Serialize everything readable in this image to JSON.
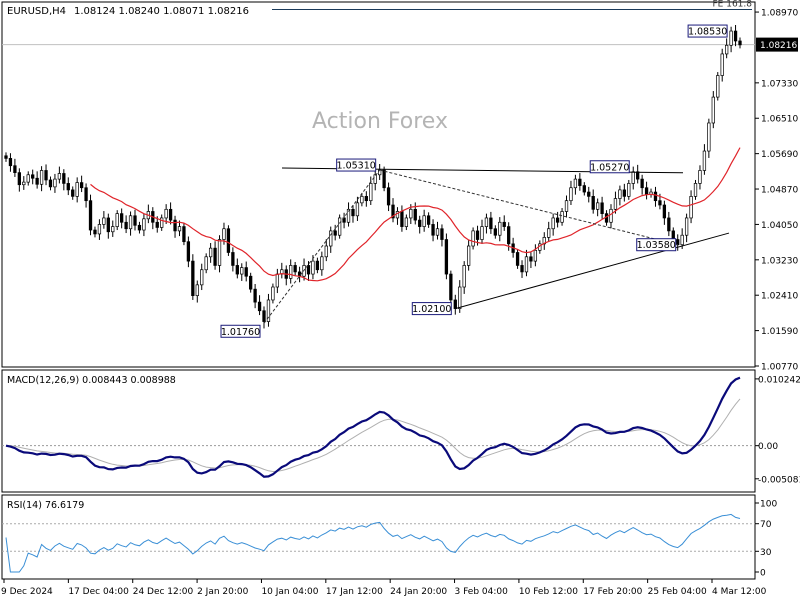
{
  "header": {
    "symbol": "EURUSD,H4",
    "ohlc": "1.08124 1.08240 1.08071 1.08216"
  },
  "watermark": "Action Forex",
  "colors": {
    "candles": "#000000",
    "ma": "#e0242a",
    "macd": "#0a0a7a",
    "macd_signal": "#b0b0b0",
    "rsi": "#3a8fd6",
    "trendline": "#000000",
    "fib_line": "#1a3a5a",
    "background": "#ffffff"
  },
  "chart_data": {
    "type": "candlestick",
    "price_axis": {
      "ticks": [
        "1.08970",
        "1.07330",
        "1.06510",
        "1.05690",
        "1.04870",
        "1.04050",
        "1.03230",
        "1.02410",
        "1.01590",
        "1.00770"
      ],
      "ylim": [
        1.0077,
        1.0918
      ],
      "current_price": "1.08216"
    },
    "time_axis": {
      "ticks": [
        "9 Dec 2024",
        "17 Dec 04:00",
        "24 Dec 12:00",
        "2 Jan 20:00",
        "10 Jan 04:00",
        "17 Jan 12:00",
        "24 Jan 20:00",
        "3 Feb 04:00",
        "10 Feb 12:00",
        "17 Feb 20:00",
        "25 Feb 04:00",
        "4 Mar 12:00"
      ]
    },
    "price_series": [
      1.0558,
      1.0541,
      1.0525,
      1.0497,
      1.0503,
      1.052,
      1.0512,
      1.0498,
      1.053,
      1.0508,
      1.0492,
      1.051,
      1.0523,
      1.05,
      1.0485,
      1.047,
      1.0502,
      1.049,
      1.046,
      1.0392,
      1.0383,
      1.0405,
      1.042,
      1.0388,
      1.04,
      1.043,
      1.041,
      1.0395,
      1.0425,
      1.0403,
      1.0392,
      1.0418,
      1.0435,
      1.041,
      1.0398,
      1.042,
      1.044,
      1.0415,
      1.039,
      1.04,
      1.0365,
      1.032,
      1.024,
      1.0265,
      1.03,
      1.033,
      1.035,
      1.031,
      1.037,
      1.0395,
      1.034,
      1.031,
      1.029,
      1.0305,
      1.0285,
      1.0255,
      1.0225,
      1.0205,
      1.018,
      1.023,
      1.026,
      1.029,
      1.03,
      1.028,
      1.031,
      1.0295,
      1.0285,
      1.031,
      1.029,
      1.032,
      1.03,
      1.033,
      1.0355,
      1.039,
      1.038,
      1.042,
      1.041,
      1.044,
      1.0425,
      1.0455,
      1.047,
      1.046,
      1.05,
      1.052,
      1.0531,
      1.049,
      1.045,
      1.042,
      1.0435,
      1.04,
      1.042,
      1.044,
      1.0415,
      1.04,
      1.0425,
      1.0405,
      1.038,
      1.0395,
      1.037,
      1.029,
      1.023,
      1.021,
      1.026,
      1.031,
      1.0355,
      1.039,
      1.037,
      1.04,
      1.042,
      1.0395,
      1.038,
      1.041,
      1.04,
      1.036,
      1.034,
      1.031,
      1.0295,
      1.033,
      1.032,
      1.0345,
      1.036,
      1.0375,
      1.0395,
      1.042,
      1.041,
      1.0435,
      1.046,
      1.049,
      1.051,
      1.0495,
      1.048,
      1.047,
      1.044,
      1.0455,
      1.043,
      1.041,
      1.044,
      1.0465,
      1.0485,
      1.047,
      1.05,
      1.0527,
      1.051,
      1.049,
      1.0475,
      1.048,
      1.046,
      1.045,
      1.042,
      1.039,
      1.037,
      1.0358,
      1.038,
      1.042,
      1.047,
      1.05,
      1.053,
      1.0575,
      1.064,
      1.07,
      1.075,
      1.08,
      1.082,
      1.0853,
      1.083,
      1.0821
    ],
    "moving_average_from_index": 19,
    "annotations": [
      {
        "label": "1.08530",
        "price": 1.0853
      },
      {
        "label": "1.05310",
        "price": 1.0531
      },
      {
        "label": "1.05270",
        "price": 1.0527
      },
      {
        "label": "1.03580",
        "price": 1.0358
      },
      {
        "label": "1.02100",
        "price": 1.021
      },
      {
        "label": "1.01760",
        "price": 1.0176
      }
    ],
    "fib_label": "FE 161.8",
    "fib_price": 1.0903
  },
  "macd": {
    "title": "MACD(12,26,9) 0.008443 0.008988",
    "ticks": [
      "0.010242",
      "0.00",
      "-0.005081"
    ],
    "ylim": [
      -0.0068,
      0.0113
    ]
  },
  "rsi": {
    "title": "RSI(14) 76.6179",
    "ticks": [
      "100",
      "70",
      "30",
      "0"
    ],
    "ylim": [
      0,
      100
    ]
  }
}
